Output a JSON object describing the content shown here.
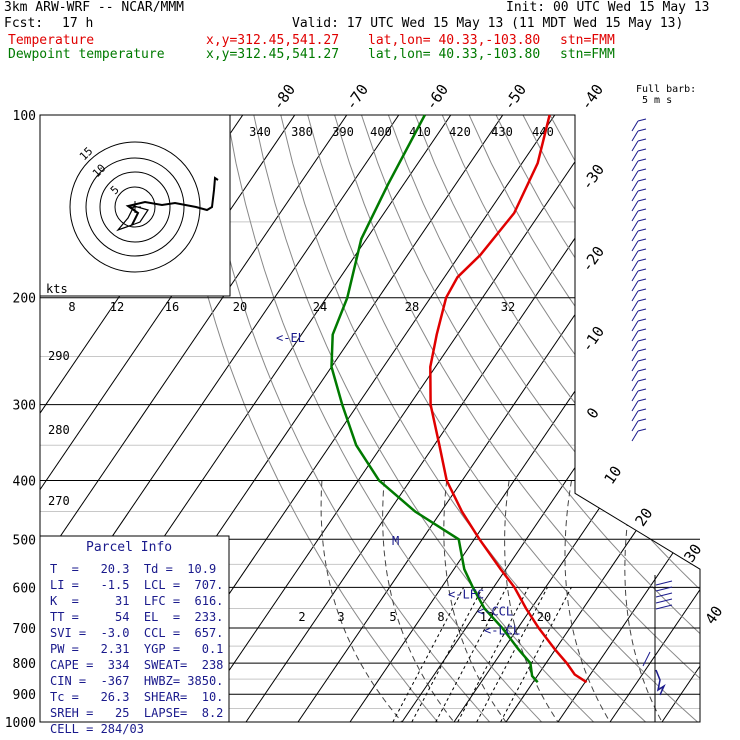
{
  "header": {
    "model": "3km ARW-WRF -- NCAR/MMM",
    "init": "Init: 00 UTC Wed 15 May 13",
    "fcst_label": "Fcst:",
    "fcst_value": "17 h",
    "valid": "Valid: 17 UTC Wed 15 May 13 (11 MDT Wed 15 May 13)",
    "temp_label": "Temperature",
    "dew_label": "Dewpoint temperature",
    "xy": "x,y=312.45,541.27",
    "latlon": "lat,lon= 40.33,-103.80",
    "stn": "stn=FMM"
  },
  "chart_data": {
    "type": "line",
    "title": "",
    "pressure_axis_labels": [
      "100",
      "200",
      "300",
      "400",
      "500",
      "600",
      "700",
      "800",
      "900",
      "1000"
    ],
    "pressure_levels": [
      100,
      200,
      300,
      400,
      500,
      600,
      700,
      800,
      900,
      1000
    ],
    "temp_tick_labels": [
      "-80",
      "-70",
      "-60",
      "-50",
      "-40",
      "-30",
      "-20",
      "-10",
      "0",
      "10",
      "20",
      "30",
      "40"
    ],
    "theta_labels": [
      "340",
      "380",
      "390",
      "400",
      "410",
      "420",
      "430",
      "440"
    ],
    "mixing_ratio_labels": [
      "2",
      "3",
      "5",
      "8",
      "12",
      "20"
    ],
    "kts_label": "kts",
    "hodo_speed_labels": [
      "8",
      "12",
      "16",
      "20",
      "24",
      "28",
      "32"
    ],
    "hodo_ring_labels": [
      "15",
      "10",
      "5"
    ],
    "theta_side_labels": [
      "290",
      "280",
      "270"
    ],
    "barb_key": {
      "title": "Full barb:",
      "value": "5 m s"
    },
    "series": [
      {
        "name": "Temperature",
        "color": "#e00000",
        "points": [
          [
            100,
            -61
          ],
          [
            120,
            -57
          ],
          [
            145,
            -55
          ],
          [
            170,
            -56
          ],
          [
            185,
            -57.5
          ],
          [
            200,
            -57
          ],
          [
            230,
            -54
          ],
          [
            260,
            -51
          ],
          [
            300,
            -46
          ],
          [
            350,
            -39
          ],
          [
            400,
            -33
          ],
          [
            450,
            -26
          ],
          [
            500,
            -19
          ],
          [
            560,
            -11
          ],
          [
            600,
            -6
          ],
          [
            650,
            -1
          ],
          [
            700,
            4
          ],
          [
            760,
            10
          ],
          [
            800,
            14
          ],
          [
            835,
            17
          ],
          [
            860,
            20.3
          ]
        ]
      },
      {
        "name": "Dewpoint temperature",
        "color": "#007a00",
        "points": [
          [
            100,
            -85
          ],
          [
            130,
            -83
          ],
          [
            160,
            -81
          ],
          [
            200,
            -76
          ],
          [
            230,
            -74
          ],
          [
            260,
            -70
          ],
          [
            300,
            -63
          ],
          [
            350,
            -55
          ],
          [
            400,
            -46
          ],
          [
            450,
            -35
          ],
          [
            500,
            -23
          ],
          [
            560,
            -18
          ],
          [
            600,
            -14
          ],
          [
            650,
            -9
          ],
          [
            700,
            -3
          ],
          [
            760,
            3
          ],
          [
            800,
            7
          ],
          [
            840,
            9
          ],
          [
            860,
            10.9
          ]
        ]
      }
    ],
    "parcel_markers": [
      {
        "label": "<-EL",
        "p": 233
      },
      {
        "label": "M",
        "p": 503
      },
      {
        "label": "<-LFC",
        "p": 616
      },
      {
        "label": "<-CCL",
        "p": 657
      },
      {
        "label": "<-LCL",
        "p": 707
      }
    ],
    "parcel_info": {
      "title": "Parcel Info",
      "rows": [
        "T  =   20.3  Td =  10.9",
        "LI =   -1.5  LCL =  707.",
        "K  =     31  LFC =  616.",
        "TT =     54  EL  =  233.",
        "SVI =  -3.0  CCL =  657.",
        "PW =   2.31  YGP =   0.1",
        "CAPE =  334  SWEAT=  238",
        "CIN =  -367  HWBZ= 3850.",
        "Tc =   26.3  SHEAR=  10.",
        "SREH =   25  LAPSE=  8.2",
        "CELL = 284/03"
      ]
    }
  }
}
